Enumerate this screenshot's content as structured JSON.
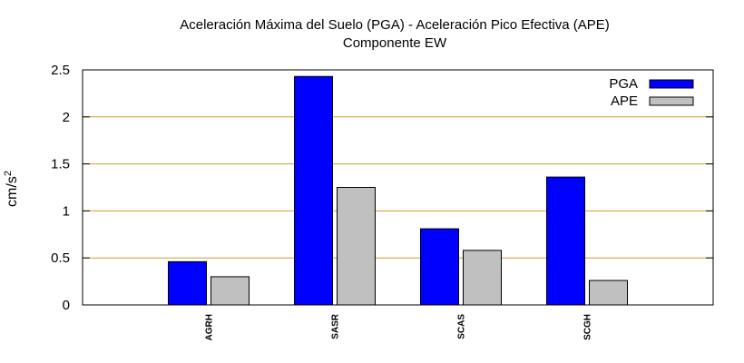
{
  "chart_data": {
    "type": "bar",
    "title": "Aceleración Máxima del Suelo (PGA) -  Aceleración Pico Efectiva (APE)",
    "subtitle": "Componente EW",
    "xlabel": "",
    "ylabel": "cm/s",
    "ylabel_superscript": "2",
    "ylim": [
      0,
      2.5
    ],
    "yticks": [
      "0",
      "0.5",
      "1",
      "1.5",
      "2",
      "2.5"
    ],
    "grid": true,
    "legend_position": "top-right",
    "categories": [
      "AGRH",
      "SASR",
      "SCAS",
      "SCGH"
    ],
    "series": [
      {
        "name": "PGA",
        "color": "#0000ff",
        "values": [
          0.46,
          2.43,
          0.81,
          1.36
        ]
      },
      {
        "name": "APE",
        "color": "#c0c0c0",
        "values": [
          0.3,
          1.25,
          0.58,
          0.26
        ]
      }
    ]
  },
  "colors": {
    "grid": "#c8a028",
    "axis": "#000000"
  }
}
